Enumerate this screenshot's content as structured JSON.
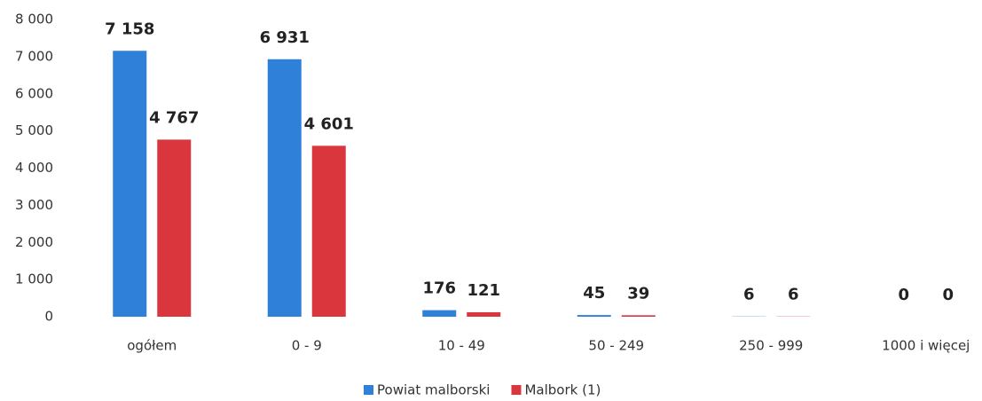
{
  "chart_data": {
    "type": "bar",
    "categories": [
      "ogółem",
      "0 - 9",
      "10 - 49",
      "50 - 249",
      "250 - 999",
      "1000 i więcej"
    ],
    "series": [
      {
        "name": "Powiat malborski",
        "color": "#2f80d8",
        "values": [
          7158,
          6931,
          176,
          45,
          6,
          0
        ],
        "value_labels": [
          "7 158",
          "6 931",
          "176",
          "45",
          "6",
          "0"
        ]
      },
      {
        "name": "Malbork (1)",
        "color": "#d9363e",
        "values": [
          4767,
          4601,
          121,
          39,
          6,
          0
        ],
        "value_labels": [
          "4 767",
          "4 601",
          "121",
          "39",
          "6",
          "0"
        ]
      }
    ],
    "ylim": [
      0,
      8000
    ],
    "yticks": [
      {
        "value": 0,
        "label": "0"
      },
      {
        "value": 1000,
        "label": "1 000"
      },
      {
        "value": 2000,
        "label": "2 000"
      },
      {
        "value": 3000,
        "label": "3 000"
      },
      {
        "value": 4000,
        "label": "4 000"
      },
      {
        "value": 5000,
        "label": "5 000"
      },
      {
        "value": 6000,
        "label": "6 000"
      },
      {
        "value": 7000,
        "label": "7 000"
      },
      {
        "value": 8000,
        "label": "8 000"
      }
    ],
    "grid": false,
    "legend": "bottom"
  }
}
